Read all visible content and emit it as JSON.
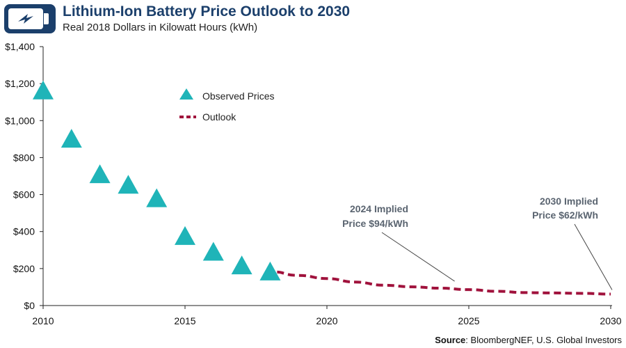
{
  "header": {
    "title": "Lithium-Ion Battery Price Outlook to 2030",
    "subtitle": "Real 2018 Dollars in Kilowatt Hours (kWh)"
  },
  "source": {
    "label": "Source",
    "text": ": BloombergNEF, U.S. Global Investors"
  },
  "colors": {
    "observed": "#1fb4b8",
    "outlook": "#a0123c",
    "brand": "#1b3f6b",
    "annotation": "#5a6470"
  },
  "chart_data": {
    "type": "scatter",
    "xlim": [
      2010,
      2030
    ],
    "ylim": [
      0,
      1400
    ],
    "x_ticks": [
      2010,
      2015,
      2020,
      2025,
      2030
    ],
    "y_ticks": [
      0,
      200,
      400,
      600,
      800,
      1000,
      1200,
      1400
    ],
    "y_tick_labels": [
      "$0",
      "$200",
      "$400",
      "$600",
      "$800",
      "$1,000",
      "$1,200",
      "$1,400"
    ],
    "legend": {
      "position": "top-center",
      "entries": [
        "Observed Prices",
        "Outlook"
      ]
    },
    "series": [
      {
        "name": "Observed Prices",
        "marker": "triangle",
        "x": [
          2010,
          2011,
          2012,
          2013,
          2014,
          2015,
          2016,
          2017,
          2018
        ],
        "y": [
          1160,
          899,
          707,
          650,
          577,
          373,
          288,
          214,
          181
        ]
      },
      {
        "name": "Outlook",
        "style": "dashed",
        "x": [
          2018,
          2019,
          2020,
          2021,
          2022,
          2023,
          2024,
          2025,
          2026,
          2027,
          2028,
          2029,
          2030
        ],
        "y": [
          181,
          163,
          146,
          127,
          110,
          101,
          94,
          86,
          77,
          70,
          68,
          66,
          62
        ]
      }
    ],
    "annotations": [
      {
        "line1": "2024 Implied",
        "line2": "Price $94/kWh",
        "x": 2024.5,
        "y": 94
      },
      {
        "line1": "2030 Implied",
        "line2": "Price $62/kWh",
        "x": 2030,
        "y": 62
      }
    ]
  }
}
